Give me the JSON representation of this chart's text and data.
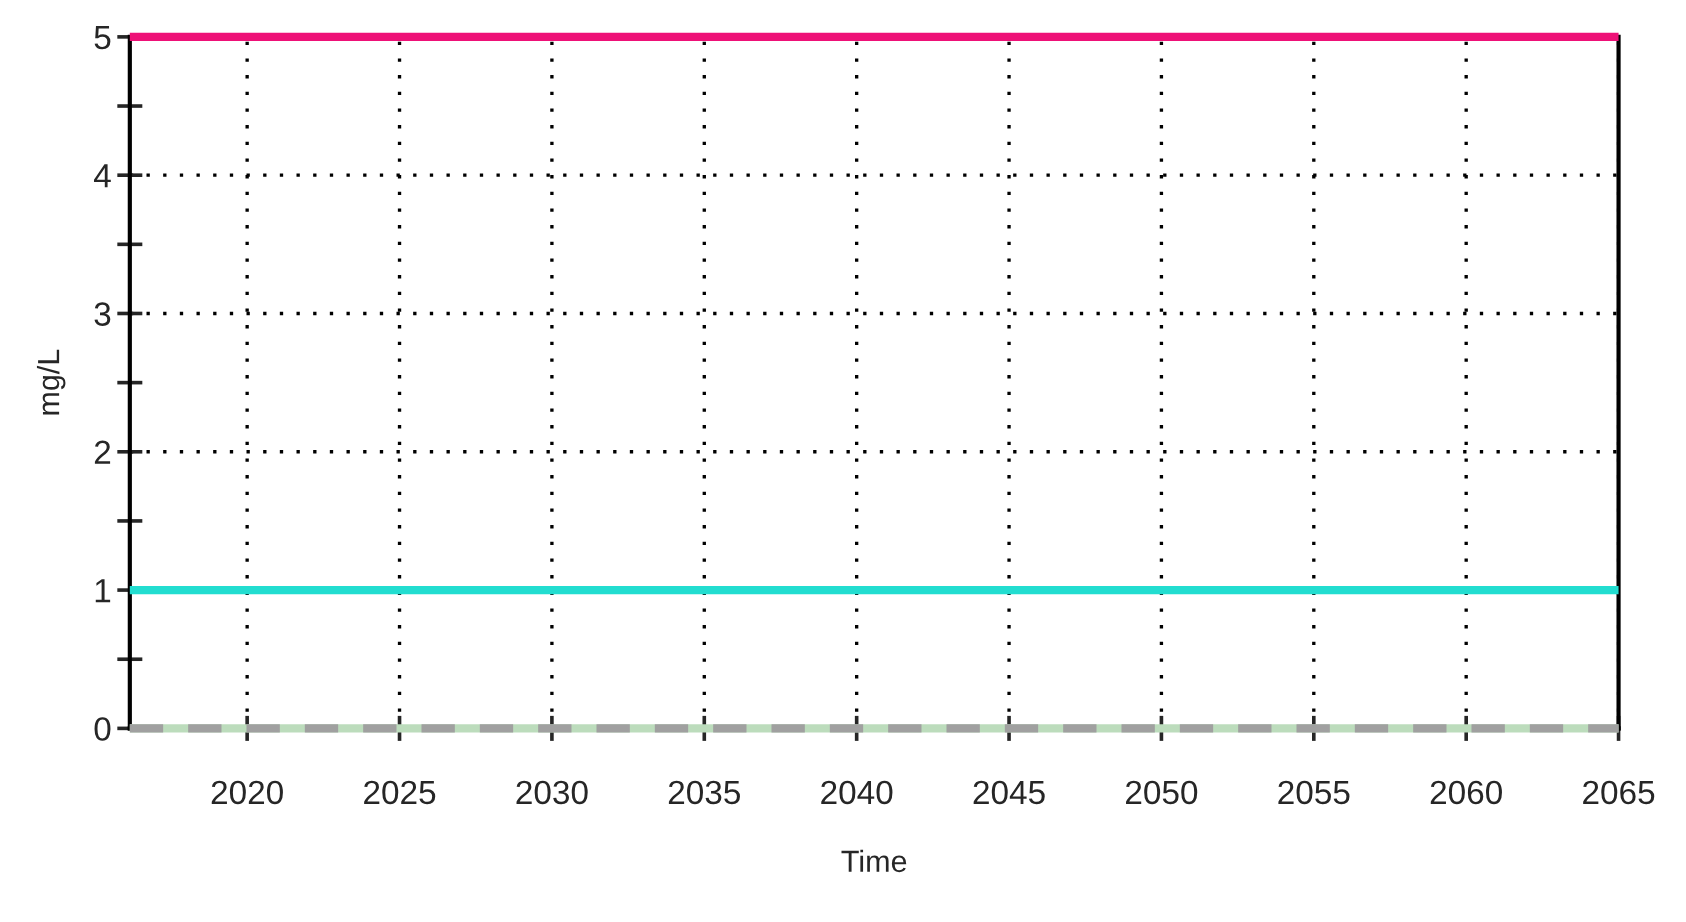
{
  "chart_data": {
    "type": "line",
    "xlabel": "Time",
    "ylabel": "mg/L",
    "x": [
      2016.15,
      2065
    ],
    "series": [
      {
        "color": "#ee1177",
        "values": [
          5,
          5
        ],
        "line_style": "solid"
      },
      {
        "color": "#22ddd0",
        "values": [
          1,
          1
        ],
        "line_style": "solid"
      },
      {
        "color": "#bcdcbc",
        "values": [
          0,
          0
        ],
        "line_style": "solid"
      },
      {
        "color": "#a0a0a0",
        "values": [
          0,
          0
        ],
        "line_style": "dashed"
      }
    ],
    "xlim": [
      2016.15,
      2065
    ],
    "xticks": [
      2020,
      2025,
      2030,
      2035,
      2040,
      2045,
      2050,
      2055,
      2060,
      2065
    ],
    "ylim": [
      0,
      5
    ],
    "yticks": [
      0,
      {
        "value": 0.5,
        "label": null
      },
      1,
      {
        "value": 1.5,
        "label": null
      },
      2,
      {
        "value": 2.5,
        "label": null
      },
      3,
      {
        "value": 3.5,
        "label": null
      },
      4,
      {
        "value": 4.5,
        "label": null
      },
      5
    ],
    "grid": true,
    "marker": "none"
  }
}
